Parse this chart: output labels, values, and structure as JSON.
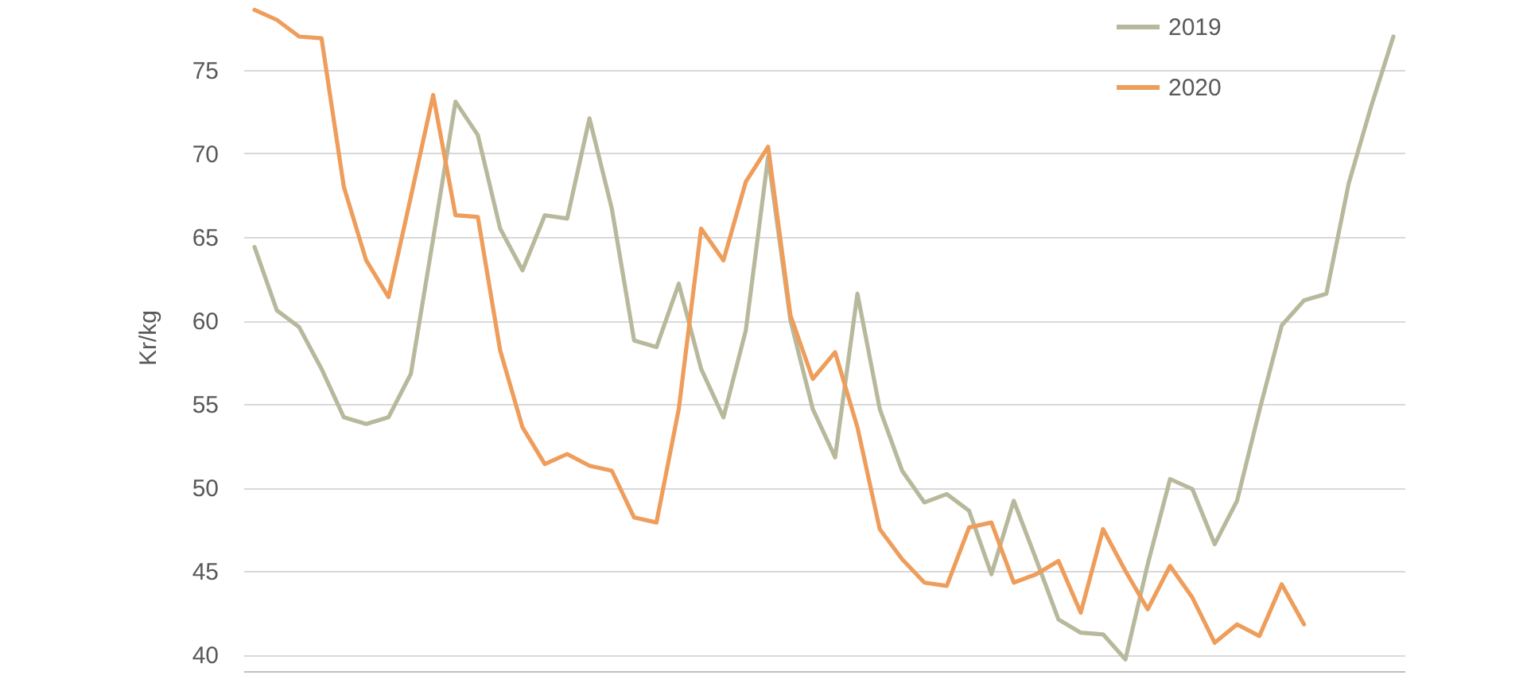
{
  "chart_data": {
    "type": "line",
    "ylabel": "Kr/kg",
    "categories": [
      null,
      null,
      null,
      null,
      null,
      null,
      null,
      null,
      null,
      null,
      null,
      null,
      null,
      null,
      null,
      null,
      null,
      null,
      null,
      null,
      null,
      null,
      null,
      null,
      null,
      null,
      null,
      null,
      null,
      null,
      null,
      null,
      null,
      null,
      null,
      null,
      null,
      null,
      null,
      null,
      null,
      null,
      null,
      null,
      null,
      null,
      null,
      null,
      null,
      null,
      null,
      null
    ],
    "series": [
      {
        "name": "2019",
        "color": "#b8b99c",
        "values": [
          64.4,
          60.6,
          59.6,
          57.1,
          54.2,
          53.8,
          54.2,
          56.8,
          64.9,
          73.1,
          71.1,
          65.5,
          63.0,
          66.3,
          66.1,
          72.1,
          66.7,
          58.8,
          58.4,
          62.2,
          57.1,
          54.2,
          59.4,
          69.8,
          60.0,
          54.7,
          51.8,
          61.6,
          54.7,
          51.0,
          49.1,
          49.6,
          48.6,
          44.8,
          49.2,
          45.7,
          42.1,
          41.3,
          41.2,
          39.7,
          45.4,
          50.5,
          49.9,
          46.6,
          49.2,
          54.6,
          59.7,
          61.2,
          61.6,
          68.2,
          72.8,
          77.0
        ]
      },
      {
        "name": "2020",
        "color": "#ee9d5b",
        "values": [
          78.6,
          78.0,
          77.0,
          76.9,
          68.0,
          63.6,
          61.4,
          67.4,
          73.5,
          66.3,
          66.2,
          58.2,
          53.6,
          51.4,
          52.0,
          51.3,
          51.0,
          48.2,
          47.9,
          54.7,
          65.5,
          63.6,
          68.3,
          70.4,
          60.3,
          56.5,
          58.1,
          53.6,
          47.5,
          45.7,
          44.3,
          44.1,
          47.6,
          47.9,
          44.3,
          44.8,
          45.6,
          42.5,
          47.5,
          45.0,
          42.7,
          45.3,
          43.4,
          40.7,
          41.8,
          41.1,
          44.2,
          41.8,
          null,
          null,
          null,
          null
        ]
      }
    ],
    "ylim": [
      39,
      79
    ],
    "yticks": [
      40,
      45,
      50,
      55,
      60,
      65,
      70,
      75
    ],
    "grid": "y",
    "legend": "top right",
    "line_style": "solid",
    "tick_labels": "y"
  }
}
